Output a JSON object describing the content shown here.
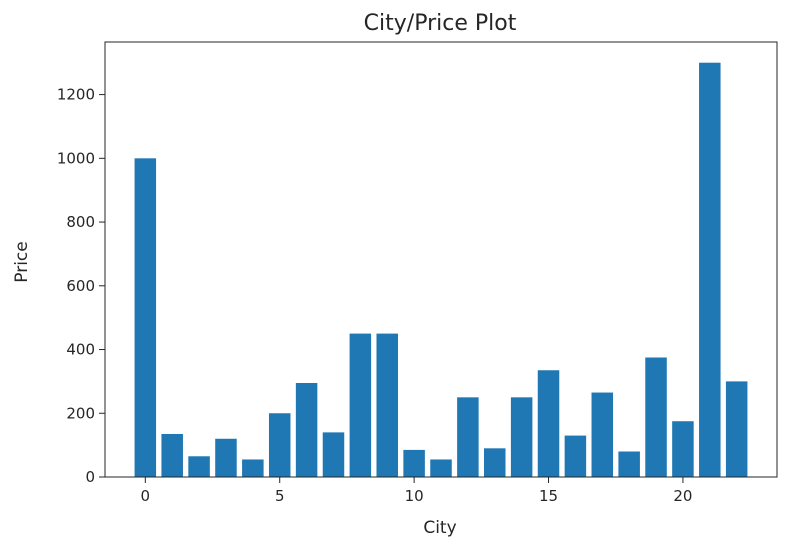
{
  "chart_data": {
    "type": "bar",
    "title": "City/Price Plot",
    "xlabel": "City",
    "ylabel": "Price",
    "bar_color": "#1f77b4",
    "x": [
      0,
      1,
      2,
      3,
      4,
      5,
      6,
      7,
      8,
      9,
      10,
      11,
      12,
      13,
      14,
      15,
      16,
      17,
      18,
      19,
      20,
      21,
      22
    ],
    "values": [
      1000,
      135,
      65,
      120,
      55,
      200,
      295,
      140,
      450,
      450,
      85,
      55,
      250,
      90,
      250,
      335,
      130,
      265,
      80,
      375,
      175,
      1300,
      300
    ],
    "xlim": [
      -1.5,
      23.5
    ],
    "ylim": [
      0,
      1365
    ],
    "xticks": [
      0,
      5,
      10,
      15,
      20
    ],
    "yticks": [
      0,
      200,
      400,
      600,
      800,
      1000,
      1200
    ],
    "grid": false
  }
}
